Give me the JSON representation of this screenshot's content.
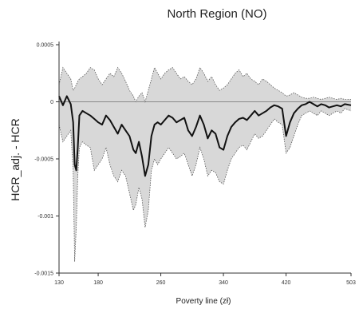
{
  "chart_data": {
    "type": "area",
    "title": "North Region (NO)",
    "xlabel": "Poverty line (zł)",
    "ylabel": "HCR_adj. - HCR",
    "xlim": [
      130,
      503
    ],
    "ylim": [
      -0.0015,
      0.0005
    ],
    "x_ticks": [
      130,
      180,
      260,
      340,
      420,
      503
    ],
    "x_tick_labels": [
      "130",
      "180",
      "260",
      "340",
      "420",
      "503"
    ],
    "y_ticks": [
      0.0005,
      0,
      -0.0005,
      -0.001,
      -0.0015
    ],
    "y_tick_labels": [
      "0.0005",
      "0",
      "-0.0005",
      "-0.001",
      "-0.0015"
    ],
    "reference_line_y": 0,
    "grid": false,
    "legend": "none",
    "colors": {
      "band_fill": "#d8d8d8",
      "band_edge": "#555555",
      "mean_line": "#111111",
      "zero_line": "#888888"
    },
    "series": [
      {
        "role": "mean",
        "x": [
          130,
          135,
          140,
          145,
          148,
          150,
          152,
          154,
          156,
          160,
          165,
          170,
          175,
          180,
          185,
          190,
          195,
          200,
          205,
          210,
          215,
          220,
          225,
          228,
          232,
          236,
          240,
          244,
          248,
          252,
          256,
          260,
          265,
          270,
          275,
          280,
          285,
          290,
          295,
          300,
          305,
          310,
          315,
          320,
          325,
          330,
          335,
          340,
          345,
          350,
          355,
          360,
          365,
          370,
          375,
          380,
          385,
          390,
          395,
          400,
          405,
          410,
          415,
          420,
          425,
          430,
          435,
          440,
          445,
          450,
          455,
          460,
          465,
          470,
          475,
          480,
          485,
          490,
          495,
          503
        ],
        "y": [
          5e-05,
          -3e-05,
          5e-05,
          -2e-05,
          -0.00018,
          -0.00055,
          -0.0006,
          -0.0004,
          -0.00012,
          -8e-05,
          -0.0001,
          -0.00012,
          -0.00015,
          -0.00018,
          -0.0002,
          -0.00012,
          -0.00016,
          -0.00022,
          -0.00028,
          -0.0002,
          -0.00025,
          -0.0003,
          -0.00042,
          -0.00045,
          -0.00035,
          -0.00048,
          -0.00065,
          -0.00055,
          -0.0003,
          -0.0002,
          -0.00018,
          -0.0002,
          -0.00016,
          -0.00012,
          -0.00014,
          -0.00018,
          -0.00016,
          -0.00014,
          -0.00025,
          -0.0003,
          -0.00022,
          -0.00012,
          -0.0002,
          -0.00032,
          -0.00025,
          -0.00028,
          -0.0004,
          -0.00042,
          -0.0003,
          -0.00022,
          -0.00018,
          -0.00015,
          -0.00014,
          -0.00016,
          -0.00012,
          -8e-05,
          -0.00012,
          -0.0001,
          -8e-05,
          -5e-05,
          -3e-05,
          -4e-05,
          -6e-05,
          -0.0003,
          -0.00018,
          -0.0001,
          -6e-05,
          -3e-05,
          -2e-05,
          0.0,
          -2e-05,
          -4e-05,
          -2e-05,
          -3e-05,
          -5e-05,
          -4e-05,
          -3e-05,
          -4e-05,
          -2e-05,
          -3e-05
        ]
      },
      {
        "role": "upper",
        "x": [
          130,
          135,
          140,
          145,
          148,
          150,
          152,
          154,
          156,
          160,
          165,
          170,
          175,
          180,
          185,
          190,
          195,
          200,
          205,
          210,
          215,
          220,
          225,
          228,
          232,
          236,
          240,
          244,
          248,
          252,
          256,
          260,
          265,
          270,
          275,
          280,
          285,
          290,
          295,
          300,
          305,
          310,
          315,
          320,
          325,
          330,
          335,
          340,
          345,
          350,
          355,
          360,
          365,
          370,
          375,
          380,
          385,
          390,
          395,
          400,
          405,
          410,
          415,
          420,
          425,
          430,
          435,
          440,
          445,
          450,
          455,
          460,
          465,
          470,
          475,
          480,
          485,
          490,
          495,
          503
        ],
        "y": [
          0.00015,
          0.0003,
          0.00025,
          0.0002,
          0.0001,
          0.00012,
          0.00015,
          0.00018,
          0.0002,
          0.00022,
          0.00025,
          0.0003,
          0.00028,
          0.0002,
          0.00015,
          0.0002,
          0.00025,
          0.00022,
          0.0003,
          0.00025,
          0.00018,
          0.0001,
          5e-05,
          0.0,
          5e-05,
          8e-05,
          0.0,
          0.0001,
          0.0002,
          0.0003,
          0.00025,
          0.0002,
          0.00025,
          0.00028,
          0.0003,
          0.00025,
          0.0002,
          0.00022,
          0.00018,
          0.00015,
          0.0002,
          0.0003,
          0.00025,
          0.00018,
          0.00022,
          0.00015,
          0.0001,
          0.00012,
          0.00015,
          0.0002,
          0.00025,
          0.00028,
          0.00022,
          0.00025,
          0.0002,
          0.00018,
          0.00015,
          0.0002,
          0.00018,
          0.00015,
          0.00012,
          0.0001,
          8e-05,
          5e-05,
          6e-05,
          8e-05,
          6e-05,
          4e-05,
          3e-05,
          3e-05,
          4e-05,
          3e-05,
          2e-05,
          3e-05,
          4e-05,
          3e-05,
          2e-05,
          3e-05,
          2e-05,
          2e-05
        ]
      },
      {
        "role": "lower",
        "x": [
          130,
          135,
          140,
          145,
          148,
          150,
          152,
          154,
          156,
          160,
          165,
          170,
          175,
          180,
          185,
          190,
          195,
          200,
          205,
          210,
          215,
          220,
          225,
          228,
          232,
          236,
          240,
          244,
          248,
          252,
          256,
          260,
          265,
          270,
          275,
          280,
          285,
          290,
          295,
          300,
          305,
          310,
          315,
          320,
          325,
          330,
          335,
          340,
          345,
          350,
          355,
          360,
          365,
          370,
          375,
          380,
          385,
          390,
          395,
          400,
          405,
          410,
          415,
          420,
          425,
          430,
          435,
          440,
          445,
          450,
          455,
          460,
          465,
          470,
          475,
          480,
          485,
          490,
          495,
          503
        ],
        "y": [
          -0.0002,
          -0.00035,
          -0.0003,
          -0.00025,
          -0.0006,
          -0.0014,
          -0.0011,
          -0.00065,
          -0.0004,
          -0.00035,
          -0.00038,
          -0.0004,
          -0.0006,
          -0.00055,
          -0.0005,
          -0.0004,
          -0.00055,
          -0.00065,
          -0.0007,
          -0.0006,
          -0.00065,
          -0.0008,
          -0.00095,
          -0.0009,
          -0.00075,
          -0.00085,
          -0.0011,
          -0.00095,
          -0.0006,
          -0.0005,
          -0.00055,
          -0.0005,
          -0.00045,
          -0.0004,
          -0.00045,
          -0.0005,
          -0.00048,
          -0.00045,
          -0.00055,
          -0.00065,
          -0.00055,
          -0.0004,
          -0.0005,
          -0.00065,
          -0.0006,
          -0.00062,
          -0.0007,
          -0.00072,
          -0.0006,
          -0.0005,
          -0.00045,
          -0.0004,
          -0.00038,
          -0.00042,
          -0.00035,
          -0.00028,
          -0.00032,
          -0.0003,
          -0.00025,
          -0.0002,
          -0.00015,
          -0.00018,
          -0.0002,
          -0.00045,
          -0.0004,
          -0.0003,
          -0.0002,
          -0.00012,
          -0.0001,
          -8e-05,
          -0.0001,
          -0.00012,
          -8e-05,
          -0.0001,
          -0.00012,
          -0.0001,
          -8e-05,
          -0.0001,
          -6e-05,
          -8e-05
        ]
      }
    ]
  }
}
